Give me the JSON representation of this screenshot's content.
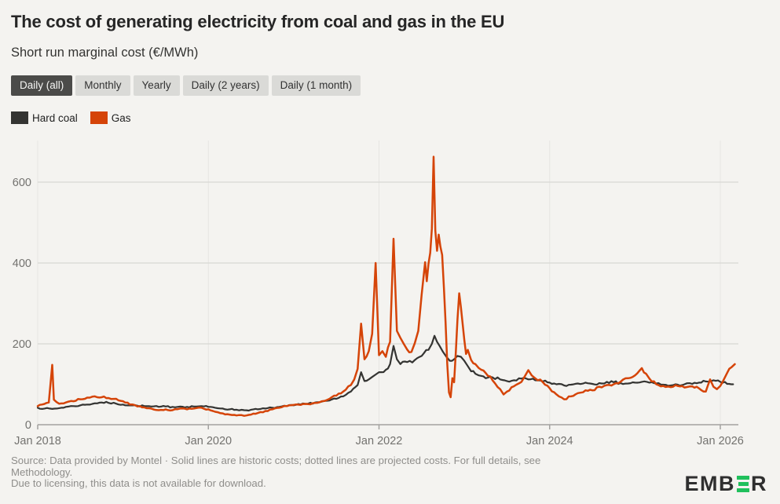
{
  "header": {
    "title": "The cost of generating electricity from coal and gas in the EU",
    "subtitle": "Short run marginal cost (€/MWh)"
  },
  "tabs": [
    {
      "label": "Daily (all)",
      "active": true
    },
    {
      "label": "Monthly",
      "active": false
    },
    {
      "label": "Yearly",
      "active": false
    },
    {
      "label": "Daily (2 years)",
      "active": false
    },
    {
      "label": "Daily (1 month)",
      "active": false
    }
  ],
  "legend": [
    {
      "label": "Hard coal",
      "color": "#343432"
    },
    {
      "label": "Gas",
      "color": "#d54408"
    }
  ],
  "chart_data": {
    "type": "line",
    "title": "Short run marginal cost (€/MWh)",
    "xlabel": "",
    "ylabel": "€/MWh",
    "ylim": [
      0,
      700
    ],
    "yticks": [
      0,
      200,
      400,
      600
    ],
    "xticks": [
      {
        "label": "Jan 2018",
        "year": 2018
      },
      {
        "label": "Jan 2020",
        "year": 2020
      },
      {
        "label": "Jan 2022",
        "year": 2022
      },
      {
        "label": "Jan 2024",
        "year": 2024
      },
      {
        "label": "Jan 2026",
        "year": 2026
      }
    ],
    "x_range": [
      2018,
      2026.2
    ],
    "grid": true,
    "legend_position": "top-left",
    "series": [
      {
        "name": "Hard coal",
        "color": "#343432",
        "points": [
          [
            2018.0,
            42
          ],
          [
            2018.08,
            40
          ],
          [
            2018.17,
            39
          ],
          [
            2018.25,
            41
          ],
          [
            2018.33,
            44
          ],
          [
            2018.42,
            46
          ],
          [
            2018.5,
            48
          ],
          [
            2018.58,
            50
          ],
          [
            2018.67,
            53
          ],
          [
            2018.75,
            55
          ],
          [
            2018.83,
            54
          ],
          [
            2018.92,
            52
          ],
          [
            2019.0,
            50
          ],
          [
            2019.08,
            48
          ],
          [
            2019.17,
            47
          ],
          [
            2019.25,
            46
          ],
          [
            2019.33,
            45
          ],
          [
            2019.42,
            44
          ],
          [
            2019.5,
            45
          ],
          [
            2019.58,
            44
          ],
          [
            2019.67,
            45
          ],
          [
            2019.75,
            44
          ],
          [
            2019.83,
            45
          ],
          [
            2019.92,
            46
          ],
          [
            2020.0,
            44
          ],
          [
            2020.08,
            42
          ],
          [
            2020.17,
            40
          ],
          [
            2020.25,
            38
          ],
          [
            2020.33,
            37
          ],
          [
            2020.42,
            36
          ],
          [
            2020.5,
            37
          ],
          [
            2020.58,
            38
          ],
          [
            2020.67,
            40
          ],
          [
            2020.75,
            42
          ],
          [
            2020.83,
            44
          ],
          [
            2020.92,
            46
          ],
          [
            2021.0,
            48
          ],
          [
            2021.08,
            50
          ],
          [
            2021.17,
            52
          ],
          [
            2021.25,
            55
          ],
          [
            2021.33,
            57
          ],
          [
            2021.42,
            60
          ],
          [
            2021.5,
            64
          ],
          [
            2021.58,
            70
          ],
          [
            2021.67,
            82
          ],
          [
            2021.75,
            98
          ],
          [
            2021.79,
            130
          ],
          [
            2021.83,
            108
          ],
          [
            2021.88,
            112
          ],
          [
            2021.92,
            118
          ],
          [
            2021.96,
            124
          ],
          [
            2022.0,
            130
          ],
          [
            2022.08,
            136
          ],
          [
            2022.13,
            150
          ],
          [
            2022.17,
            195
          ],
          [
            2022.21,
            162
          ],
          [
            2022.25,
            150
          ],
          [
            2022.33,
            155
          ],
          [
            2022.42,
            160
          ],
          [
            2022.5,
            170
          ],
          [
            2022.58,
            185
          ],
          [
            2022.62,
            200
          ],
          [
            2022.65,
            220
          ],
          [
            2022.68,
            205
          ],
          [
            2022.71,
            195
          ],
          [
            2022.75,
            180
          ],
          [
            2022.79,
            168
          ],
          [
            2022.83,
            158
          ],
          [
            2022.88,
            162
          ],
          [
            2022.92,
            170
          ],
          [
            2022.96,
            168
          ],
          [
            2023.0,
            158
          ],
          [
            2023.04,
            145
          ],
          [
            2023.08,
            132
          ],
          [
            2023.13,
            126
          ],
          [
            2023.17,
            122
          ],
          [
            2023.25,
            115
          ],
          [
            2023.33,
            117
          ],
          [
            2023.42,
            112
          ],
          [
            2023.5,
            108
          ],
          [
            2023.58,
            110
          ],
          [
            2023.67,
            114
          ],
          [
            2023.75,
            112
          ],
          [
            2023.83,
            110
          ],
          [
            2023.92,
            107
          ],
          [
            2024.0,
            104
          ],
          [
            2024.08,
            100
          ],
          [
            2024.17,
            97
          ],
          [
            2024.25,
            99
          ],
          [
            2024.33,
            102
          ],
          [
            2024.42,
            104
          ],
          [
            2024.5,
            101
          ],
          [
            2024.58,
            103
          ],
          [
            2024.67,
            106
          ],
          [
            2024.75,
            105
          ],
          [
            2024.83,
            103
          ],
          [
            2024.92,
            102
          ],
          [
            2025.0,
            104
          ],
          [
            2025.08,
            106
          ],
          [
            2025.17,
            104
          ],
          [
            2025.25,
            102
          ],
          [
            2025.33,
            99
          ],
          [
            2025.42,
            97
          ],
          [
            2025.5,
            99
          ],
          [
            2025.58,
            100
          ],
          [
            2025.67,
            101
          ],
          [
            2025.75,
            104
          ],
          [
            2025.83,
            107
          ],
          [
            2025.92,
            110
          ],
          [
            2026.0,
            106
          ],
          [
            2026.08,
            101
          ],
          [
            2026.15,
            100
          ]
        ]
      },
      {
        "name": "Gas",
        "color": "#d54408",
        "points": [
          [
            2018.0,
            46
          ],
          [
            2018.05,
            50
          ],
          [
            2018.13,
            55
          ],
          [
            2018.17,
            148
          ],
          [
            2018.19,
            62
          ],
          [
            2018.25,
            52
          ],
          [
            2018.33,
            55
          ],
          [
            2018.42,
            58
          ],
          [
            2018.5,
            63
          ],
          [
            2018.58,
            67
          ],
          [
            2018.67,
            70
          ],
          [
            2018.75,
            68
          ],
          [
            2018.83,
            66
          ],
          [
            2018.92,
            64
          ],
          [
            2019.0,
            58
          ],
          [
            2019.08,
            50
          ],
          [
            2019.17,
            45
          ],
          [
            2019.25,
            43
          ],
          [
            2019.33,
            40
          ],
          [
            2019.42,
            36
          ],
          [
            2019.5,
            38
          ],
          [
            2019.58,
            36
          ],
          [
            2019.67,
            40
          ],
          [
            2019.75,
            38
          ],
          [
            2019.83,
            40
          ],
          [
            2019.92,
            42
          ],
          [
            2020.0,
            38
          ],
          [
            2020.08,
            32
          ],
          [
            2020.17,
            28
          ],
          [
            2020.25,
            25
          ],
          [
            2020.33,
            23
          ],
          [
            2020.42,
            22
          ],
          [
            2020.5,
            25
          ],
          [
            2020.58,
            29
          ],
          [
            2020.67,
            34
          ],
          [
            2020.75,
            38
          ],
          [
            2020.83,
            42
          ],
          [
            2020.92,
            46
          ],
          [
            2021.0,
            49
          ],
          [
            2021.08,
            49
          ],
          [
            2021.17,
            51
          ],
          [
            2021.25,
            54
          ],
          [
            2021.33,
            58
          ],
          [
            2021.42,
            64
          ],
          [
            2021.5,
            72
          ],
          [
            2021.58,
            82
          ],
          [
            2021.67,
            98
          ],
          [
            2021.71,
            112
          ],
          [
            2021.75,
            138
          ],
          [
            2021.79,
            250
          ],
          [
            2021.83,
            162
          ],
          [
            2021.88,
            182
          ],
          [
            2021.92,
            225
          ],
          [
            2021.96,
            400
          ],
          [
            2022.0,
            172
          ],
          [
            2022.04,
            182
          ],
          [
            2022.08,
            168
          ],
          [
            2022.13,
            205
          ],
          [
            2022.17,
            460
          ],
          [
            2022.21,
            232
          ],
          [
            2022.25,
            215
          ],
          [
            2022.29,
            200
          ],
          [
            2022.33,
            186
          ],
          [
            2022.38,
            180
          ],
          [
            2022.42,
            202
          ],
          [
            2022.46,
            232
          ],
          [
            2022.5,
            322
          ],
          [
            2022.54,
            402
          ],
          [
            2022.56,
            355
          ],
          [
            2022.58,
            398
          ],
          [
            2022.6,
            425
          ],
          [
            2022.62,
            485
          ],
          [
            2022.64,
            663
          ],
          [
            2022.66,
            480
          ],
          [
            2022.68,
            430
          ],
          [
            2022.7,
            470
          ],
          [
            2022.72,
            440
          ],
          [
            2022.74,
            420
          ],
          [
            2022.76,
            340
          ],
          [
            2022.78,
            255
          ],
          [
            2022.8,
            150
          ],
          [
            2022.82,
            80
          ],
          [
            2022.84,
            68
          ],
          [
            2022.86,
            115
          ],
          [
            2022.88,
            105
          ],
          [
            2022.9,
            180
          ],
          [
            2022.92,
            260
          ],
          [
            2022.94,
            325
          ],
          [
            2022.96,
            290
          ],
          [
            2023.0,
            210
          ],
          [
            2023.02,
            175
          ],
          [
            2023.04,
            185
          ],
          [
            2023.08,
            160
          ],
          [
            2023.13,
            150
          ],
          [
            2023.17,
            140
          ],
          [
            2023.25,
            128
          ],
          [
            2023.33,
            110
          ],
          [
            2023.42,
            88
          ],
          [
            2023.46,
            75
          ],
          [
            2023.5,
            82
          ],
          [
            2023.58,
            95
          ],
          [
            2023.67,
            106
          ],
          [
            2023.71,
            120
          ],
          [
            2023.75,
            135
          ],
          [
            2023.79,
            122
          ],
          [
            2023.83,
            115
          ],
          [
            2023.92,
            105
          ],
          [
            2024.0,
            90
          ],
          [
            2024.08,
            75
          ],
          [
            2024.17,
            63
          ],
          [
            2024.25,
            70
          ],
          [
            2024.33,
            78
          ],
          [
            2024.42,
            85
          ],
          [
            2024.5,
            85
          ],
          [
            2024.58,
            94
          ],
          [
            2024.67,
            98
          ],
          [
            2024.75,
            100
          ],
          [
            2024.83,
            106
          ],
          [
            2024.92,
            115
          ],
          [
            2025.0,
            122
          ],
          [
            2025.08,
            140
          ],
          [
            2025.13,
            126
          ],
          [
            2025.17,
            114
          ],
          [
            2025.25,
            100
          ],
          [
            2025.33,
            96
          ],
          [
            2025.42,
            93
          ],
          [
            2025.5,
            96
          ],
          [
            2025.58,
            92
          ],
          [
            2025.67,
            95
          ],
          [
            2025.75,
            90
          ],
          [
            2025.83,
            82
          ],
          [
            2025.88,
            112
          ],
          [
            2025.92,
            94
          ],
          [
            2025.96,
            88
          ],
          [
            2026.0,
            96
          ],
          [
            2026.08,
            128
          ],
          [
            2026.13,
            142
          ],
          [
            2026.17,
            150
          ]
        ]
      }
    ]
  },
  "footer": {
    "line1": "Source: Data provided by Montel · Solid lines are historic costs; dotted lines are projected costs. For full details, see",
    "line2": "Methodology.",
    "line3": "Due to licensing, this data is not available for download.",
    "logo_part1": "EMB",
    "logo_part2": "R",
    "logo_accent": "#20c05c"
  }
}
